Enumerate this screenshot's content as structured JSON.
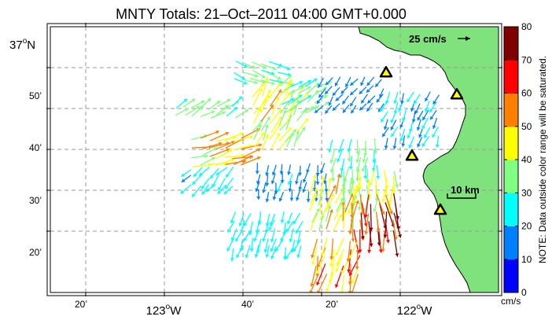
{
  "title": "MNTY Totals: 21–Oct–2011 04:00 GMT+0.000",
  "lat_labels": [
    {
      "deg": "37",
      "unit": "o",
      "hemi": "N",
      "lat": 37.0
    },
    {
      "text": "50’",
      "lat": 36.8333
    },
    {
      "text": "40’",
      "lat": 36.6667
    },
    {
      "text": "30’",
      "lat": 36.5
    },
    {
      "text": "20’",
      "lat": 36.3333
    }
  ],
  "lon_labels": [
    {
      "text": "20’",
      "lon": -123.3333
    },
    {
      "deg": "123",
      "unit": "o",
      "hemi": "W",
      "lon": -123.0
    },
    {
      "text": "40’",
      "lon": -122.6667
    },
    {
      "text": "20’",
      "lon": -122.3333
    },
    {
      "deg": "122",
      "unit": "o",
      "hemi": "W",
      "lon": -122.0
    }
  ],
  "map_extent": {
    "lon_min": -123.4833,
    "lon_max": -121.5833,
    "lat_min": 36.0833,
    "lat_max": 37.1667
  },
  "reference_vector": {
    "label": "25 cm/s",
    "speed": 25
  },
  "scale_bar": {
    "label": "10 km"
  },
  "colorbar": {
    "unit": "cm/s",
    "note": "NOTE: Data outside color range will be saturated.",
    "tick_labels": [
      "0",
      "10",
      "20",
      "30",
      "40",
      "50",
      "60",
      "70",
      "80"
    ],
    "colors": [
      "#0000ff",
      "#0080ff",
      "#00ffff",
      "#80ff80",
      "#ffff00",
      "#ff8000",
      "#ff0000",
      "#800000"
    ]
  },
  "colors": {
    "land": "#80e27c",
    "coast": "#000000",
    "grid": "#9a9a9a",
    "station_fill": "#ffff00"
  },
  "stations": [
    {
      "lon": -122.06,
      "lat": 36.98
    },
    {
      "lon": -121.76,
      "lat": 36.89
    },
    {
      "lon": -121.95,
      "lat": 36.64
    },
    {
      "lon": -121.83,
      "lat": 36.42
    }
  ],
  "vector_regions": [
    {
      "lon": [
        -122.95,
        -122.7
      ],
      "lat": [
        36.8,
        36.85
      ],
      "u": 0.7,
      "v": 0.5,
      "speed": 33
    },
    {
      "lon": [
        -122.88,
        -122.64
      ],
      "lat": [
        36.6,
        36.72
      ],
      "u": 0.85,
      "v": 0.25,
      "speed": 47
    },
    {
      "lon": [
        -122.88,
        -122.68
      ],
      "lat": [
        36.52,
        36.6
      ],
      "u": -0.5,
      "v": -0.55,
      "speed": 24
    },
    {
      "lon": [
        -122.7,
        -122.5
      ],
      "lat": [
        36.95,
        37.02
      ],
      "u": 0.6,
      "v": -0.3,
      "speed": 32
    },
    {
      "lon": [
        -122.62,
        -122.42
      ],
      "lat": [
        36.67,
        36.88
      ],
      "u": 0.45,
      "v": 0.8,
      "speed": 43
    },
    {
      "lon": [
        -122.5,
        -122.35
      ],
      "lat": [
        36.82,
        36.94
      ],
      "u": 0.6,
      "v": 0.4,
      "speed": 33
    },
    {
      "lon": [
        -122.6,
        -122.3
      ],
      "lat": [
        36.5,
        36.63
      ],
      "u": -0.15,
      "v": -0.95,
      "speed": 17
    },
    {
      "lon": [
        -122.7,
        -122.42
      ],
      "lat": [
        36.27,
        36.42
      ],
      "u": -0.3,
      "v": -0.9,
      "speed": 25
    },
    {
      "lon": [
        -122.32,
        -122.05
      ],
      "lat": [
        36.85,
        36.97
      ],
      "u": -0.5,
      "v": -0.65,
      "speed": 15
    },
    {
      "lon": [
        -122.05,
        -121.82
      ],
      "lat": [
        36.72,
        36.9
      ],
      "u": -0.3,
      "v": -0.8,
      "speed": 21
    },
    {
      "lon": [
        -122.28,
        -122.1
      ],
      "lat": [
        36.6,
        36.72
      ],
      "u": -0.15,
      "v": -0.95,
      "speed": 29
    },
    {
      "lon": [
        -122.24,
        -122.02
      ],
      "lat": [
        36.48,
        36.6
      ],
      "u": -0.05,
      "v": -1.0,
      "speed": 39
    },
    {
      "lon": [
        -122.2,
        -122.0
      ],
      "lat": [
        36.34,
        36.48
      ],
      "u": 0.1,
      "v": -1.0,
      "speed": 63
    },
    {
      "lon": [
        -122.38,
        -122.2
      ],
      "lat": [
        36.34,
        36.48
      ],
      "u": 0.25,
      "v": 0.95,
      "speed": 44
    },
    {
      "lon": [
        -122.35,
        -122.16
      ],
      "lat": [
        36.16,
        36.32
      ],
      "u": -0.25,
      "v": -0.95,
      "speed": 52
    }
  ]
}
